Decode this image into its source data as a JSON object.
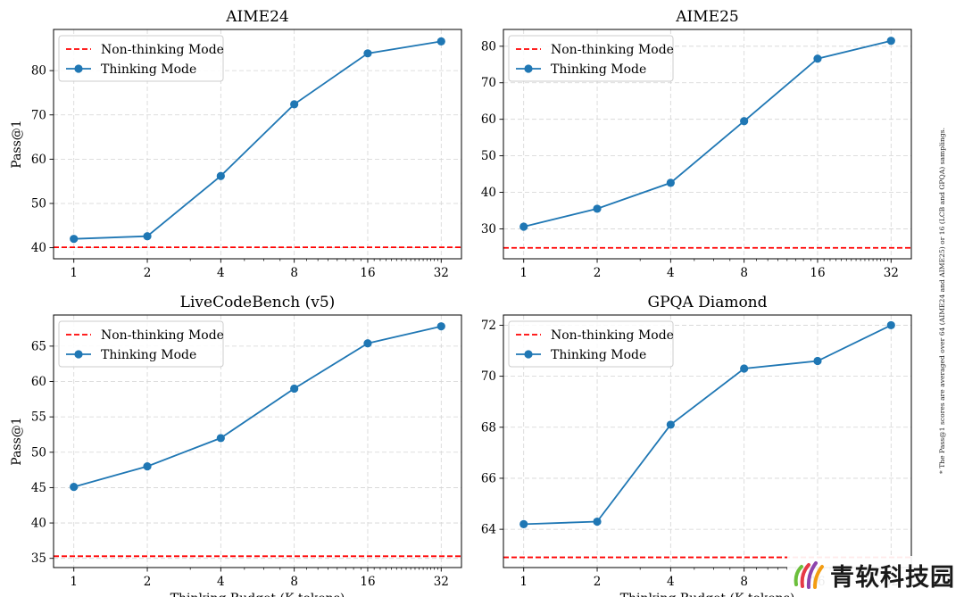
{
  "chart_data": [
    {
      "type": "line",
      "title": "AIME24",
      "xlabel": "",
      "ylabel": "Pass@1",
      "x_scale": "log2",
      "x": [
        1,
        2,
        4,
        8,
        16,
        32
      ],
      "x_ticks": [
        "1",
        "2",
        "4",
        "8",
        "16",
        "32"
      ],
      "ylim": [
        37.5,
        89.3
      ],
      "y_ticks": [
        40,
        50,
        60,
        70,
        80
      ],
      "grid": true,
      "legend_position": "top-left",
      "series": [
        {
          "name": "Non-thinking Mode",
          "kind": "hline",
          "value": 40.1,
          "color": "#ff0000",
          "style": "dashed"
        },
        {
          "name": "Thinking Mode",
          "values": [
            42.0,
            42.6,
            56.2,
            72.4,
            83.9,
            86.6
          ],
          "color": "#1f77b4",
          "marker": "circle"
        }
      ]
    },
    {
      "type": "line",
      "title": "AIME25",
      "xlabel": "",
      "ylabel": "",
      "x_scale": "log2",
      "x": [
        1,
        2,
        4,
        8,
        16,
        32
      ],
      "x_ticks": [
        "1",
        "2",
        "4",
        "8",
        "16",
        "32"
      ],
      "ylim": [
        21.8,
        84.6
      ],
      "y_ticks": [
        30,
        40,
        50,
        60,
        70,
        80
      ],
      "grid": true,
      "legend_position": "top-left",
      "series": [
        {
          "name": "Non-thinking Mode",
          "kind": "hline",
          "value": 24.8,
          "color": "#ff0000",
          "style": "dashed"
        },
        {
          "name": "Thinking Mode",
          "values": [
            30.6,
            35.5,
            42.6,
            59.5,
            76.6,
            81.5
          ],
          "color": "#1f77b4",
          "marker": "circle"
        }
      ]
    },
    {
      "type": "line",
      "title": "LiveCodeBench (v5)",
      "xlabel": "Thinking Budget (K tokens)",
      "ylabel": "Pass@1",
      "x_scale": "log2",
      "x": [
        1,
        2,
        4,
        8,
        16,
        32
      ],
      "x_ticks": [
        "1",
        "2",
        "4",
        "8",
        "16",
        "32"
      ],
      "ylim": [
        33.7,
        69.4
      ],
      "y_ticks": [
        35,
        40,
        45,
        50,
        55,
        60,
        65
      ],
      "grid": true,
      "legend_position": "top-left",
      "series": [
        {
          "name": "Non-thinking Mode",
          "kind": "hline",
          "value": 35.3,
          "color": "#ff0000",
          "style": "dashed"
        },
        {
          "name": "Thinking Mode",
          "values": [
            45.1,
            48.0,
            52.0,
            59.0,
            65.4,
            67.8
          ],
          "color": "#1f77b4",
          "marker": "circle"
        }
      ]
    },
    {
      "type": "line",
      "title": "GPQA Diamond",
      "xlabel": "Thinking Budget (K tokens)",
      "ylabel": "",
      "x_scale": "log2",
      "x": [
        1,
        2,
        4,
        8,
        16,
        32
      ],
      "x_ticks": [
        "1",
        "2",
        "4",
        "8",
        "16",
        "32"
      ],
      "ylim": [
        62.5,
        72.4
      ],
      "y_ticks": [
        64,
        66,
        68,
        70,
        72
      ],
      "grid": true,
      "legend_position": "top-left",
      "series": [
        {
          "name": "Non-thinking Mode",
          "kind": "hline",
          "value": 62.9,
          "color": "#ff0000",
          "style": "dashed"
        },
        {
          "name": "Thinking Mode",
          "values": [
            64.2,
            64.3,
            68.1,
            70.3,
            70.6,
            72.0
          ],
          "color": "#1f77b4",
          "marker": "circle"
        }
      ]
    }
  ],
  "footnote": "* The Pass@1 scores are averaged over 64 (AIME24 and AIME25) or 16 (LCB and GPQA) samplings.",
  "watermark": {
    "text": "青软科技园"
  }
}
